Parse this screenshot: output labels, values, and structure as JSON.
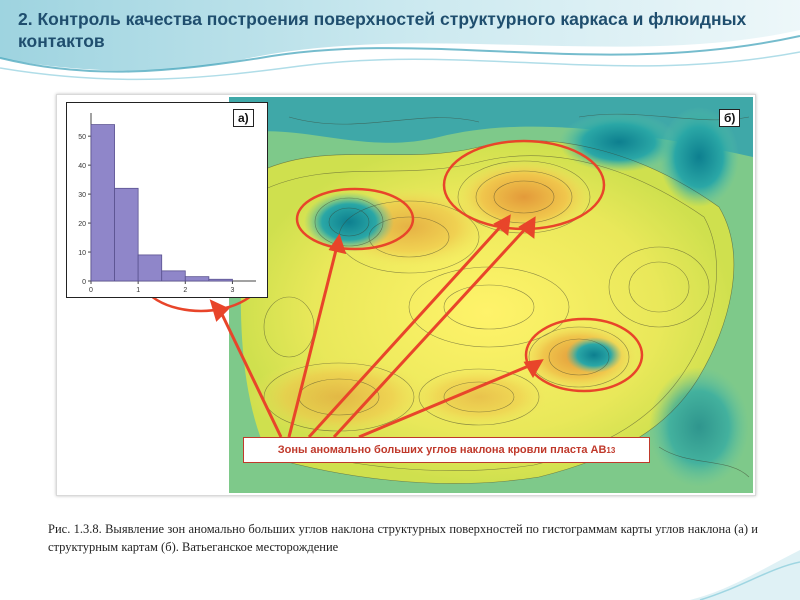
{
  "slide": {
    "title": "2. Контроль качества построения поверхностей структурного каркаса и флюидных контактов"
  },
  "figure": {
    "panel_a_label": "а)",
    "panel_b_label": "б)",
    "annotation_text": "Зоны аномально больших углов наклона кровли пласта АВ",
    "annotation_subscript": "1",
    "annotation_superscript": "3",
    "caption": "Рис. 1.3.8. Выявление зон аномально больших углов наклона структурных поверхностей по гистограммам карты углов наклона (а) и структурным картам (б). Ватьеганское месторождение",
    "colors": {
      "highlight_red": "#e8452a",
      "bar_fill": "#8f86c9",
      "title_color": "#1f4e6e"
    }
  },
  "chart_data": {
    "type": "bar",
    "x": [
      0.25,
      0.75,
      1.25,
      1.75,
      2.25,
      2.75
    ],
    "values": [
      54,
      32,
      9,
      3.5,
      1.5,
      0.6
    ],
    "x_tick_labels": [
      "0",
      "1",
      "2",
      "3"
    ],
    "y_tick_labels": [
      "0",
      "10",
      "20",
      "30",
      "40",
      "50"
    ],
    "xlim": [
      0,
      3.5
    ],
    "ylim": [
      0,
      58
    ],
    "title": "",
    "xlabel": "",
    "ylabel": ""
  }
}
